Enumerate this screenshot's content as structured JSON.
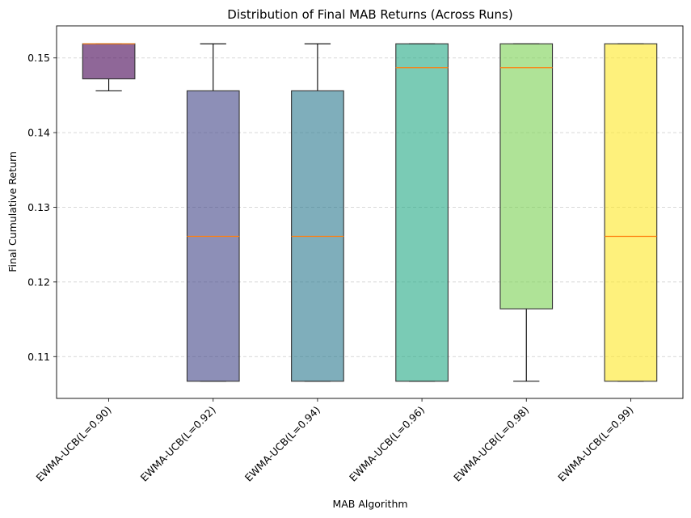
{
  "chart_data": {
    "type": "box",
    "title": "Distribution of Final MAB Returns (Across Runs)",
    "xlabel": "MAB Algorithm",
    "ylabel": "Final Cumulative Return",
    "ylim": [
      0.1044,
      0.1543
    ],
    "yticks": [
      0.11,
      0.12,
      0.13,
      0.14,
      0.15
    ],
    "ytick_labels": [
      "0.11",
      "0.12",
      "0.13",
      "0.14",
      "0.15"
    ],
    "grid": "y-dashed",
    "categories": [
      "EWMA-UCB(L=0.90)",
      "EWMA-UCB(L=0.92)",
      "EWMA-UCB(L=0.94)",
      "EWMA-UCB(L=0.96)",
      "EWMA-UCB(L=0.98)",
      "EWMA-UCB(L=0.99)"
    ],
    "boxes": [
      {
        "whisker_low": 0.1456,
        "q1": 0.1472,
        "median": 0.1519,
        "q3": 0.1519,
        "whisker_high": 0.1519,
        "color": "#440154"
      },
      {
        "whisker_low": 0.1067,
        "q1": 0.1067,
        "median": 0.1261,
        "q3": 0.1456,
        "whisker_high": 0.1519,
        "color": "#414487"
      },
      {
        "whisker_low": 0.1067,
        "q1": 0.1067,
        "median": 0.1261,
        "q3": 0.1456,
        "whisker_high": 0.1519,
        "color": "#2a788e"
      },
      {
        "whisker_low": 0.1067,
        "q1": 0.1067,
        "median": 0.1487,
        "q3": 0.1519,
        "whisker_high": 0.1519,
        "color": "#22a884"
      },
      {
        "whisker_low": 0.1067,
        "q1": 0.1164,
        "median": 0.1487,
        "q3": 0.1519,
        "whisker_high": 0.1519,
        "color": "#7ad151"
      },
      {
        "whisker_low": 0.1067,
        "q1": 0.1067,
        "median": 0.1261,
        "q3": 0.1519,
        "whisker_high": 0.1519,
        "color": "#fde725"
      }
    ],
    "median_color": "#ff7f0e"
  }
}
